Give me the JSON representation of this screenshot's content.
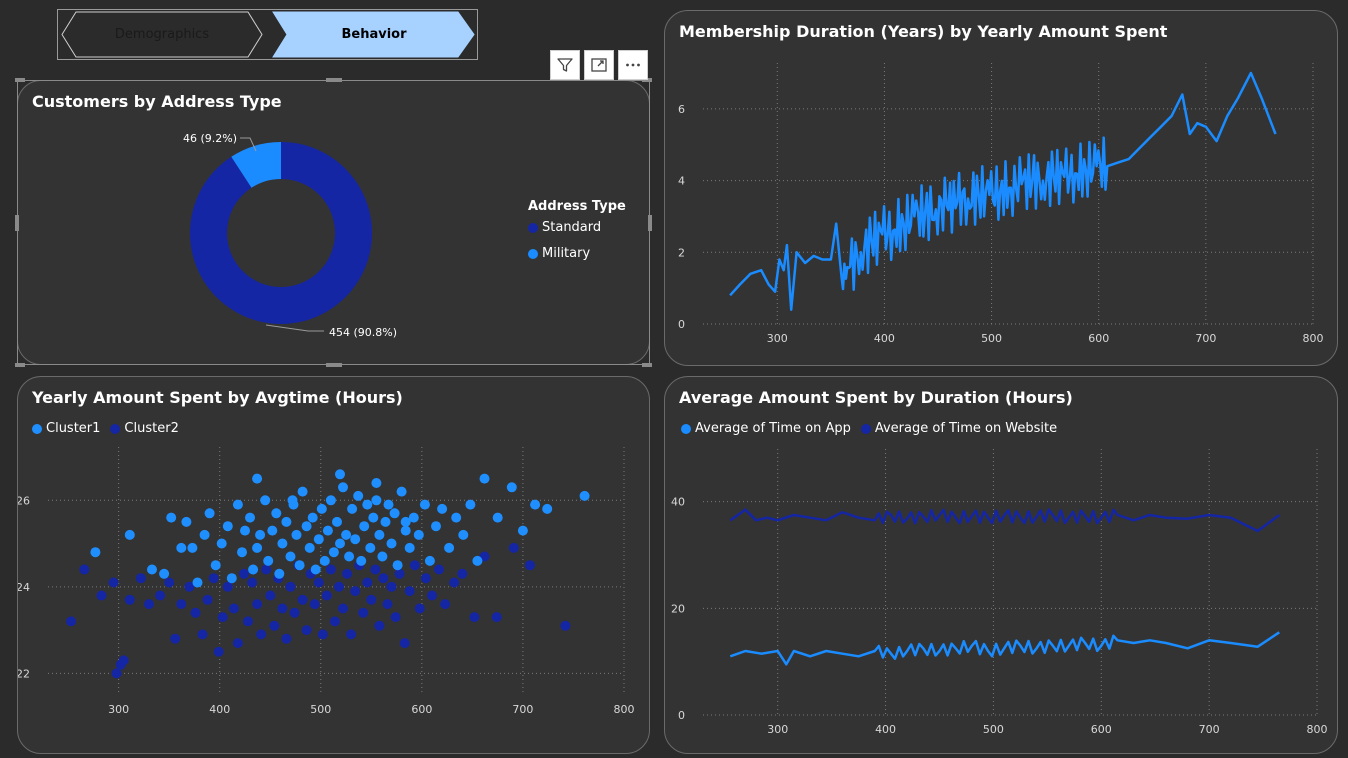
{
  "tabs": [
    {
      "label": "Demographics",
      "active": false
    },
    {
      "label": "Behavior",
      "active": true
    }
  ],
  "visual_header": {
    "icons": [
      "filter-icon",
      "focus-mode-icon",
      "more-options-icon"
    ]
  },
  "colors": {
    "cluster1": "#1f8fff",
    "cluster2": "#1526a5",
    "standard": "#1526a5",
    "military": "#1a8cff",
    "line": "#1a8cff",
    "tab_active": "#a7d2ff"
  },
  "donut": {
    "title": "Customers by Address Type",
    "legend_title": "Address Type",
    "chart_data": {
      "type": "pie",
      "title": "Customers by Address Type",
      "legend_title": "Address Type",
      "slices": [
        {
          "name": "Standard",
          "value": 454,
          "label": "454 (90.8%)"
        },
        {
          "name": "Military",
          "value": 46,
          "label": "46 (9.2%)"
        }
      ],
      "legend_position": "right"
    }
  },
  "membership": {
    "title": "Membership Duration (Years) by Yearly Amount Spent",
    "chart_data": {
      "type": "line",
      "title": "Membership Duration (Years) by Yearly Amount Spent",
      "xlim": [
        240,
        800
      ],
      "ylim": [
        0,
        7
      ],
      "x_ticks": [
        300,
        400,
        500,
        600,
        700,
        800
      ],
      "y_ticks": [
        0,
        2,
        4,
        6
      ],
      "grid": true,
      "series": [
        {
          "values_x": [
            256,
            265,
            275,
            285,
            292,
            298,
            302,
            306,
            309,
            313,
            318,
            326,
            334,
            342,
            350,
            355,
            360,
            368,
            378,
            388,
            398,
            408,
            418,
            428,
            438,
            448,
            458,
            468,
            478,
            488,
            498,
            508,
            518,
            528,
            538,
            548,
            558,
            568,
            578,
            588,
            598,
            608,
            618,
            628,
            638,
            648,
            658,
            668,
            678,
            685,
            692,
            700,
            710,
            720,
            730,
            742,
            752,
            765
          ],
          "values_y": [
            0.8,
            1.1,
            1.4,
            1.5,
            1.1,
            0.9,
            1.8,
            1.5,
            2.2,
            0.4,
            2.0,
            1.7,
            1.9,
            1.8,
            1.8,
            2.8,
            1.3,
            1.6,
            2.0,
            2.3,
            2.5,
            2.6,
            2.8,
            3.0,
            3.1,
            3.2,
            3.3,
            3.4,
            3.5,
            3.6,
            3.6,
            3.7,
            3.8,
            3.9,
            4.0,
            4.0,
            4.1,
            4.1,
            4.2,
            4.3,
            4.4,
            4.4,
            4.5,
            4.6,
            4.9,
            5.2,
            5.5,
            5.8,
            6.4,
            5.3,
            5.6,
            5.5,
            5.1,
            5.8,
            6.3,
            7.0,
            6.3,
            5.3
          ]
        }
      ]
    }
  },
  "scatter": {
    "title": "Yearly Amount Spent by Avgtime (Hours)",
    "legend": [
      "Cluster1",
      "Cluster2"
    ],
    "chart_data": {
      "type": "scatter",
      "title": "Yearly Amount Spent by Avgtime (Hours)",
      "xlim": [
        240,
        800
      ],
      "ylim": [
        21.5,
        27
      ],
      "x_ticks": [
        300,
        400,
        500,
        600,
        700,
        800
      ],
      "y_ticks": [
        22,
        24,
        26
      ],
      "grid": true,
      "legend_position": "top-left",
      "series": [
        {
          "name": "Cluster1",
          "points": [
            [
              277,
              24.8
            ],
            [
              311,
              25.2
            ],
            [
              333,
              24.4
            ],
            [
              345,
              24.3
            ],
            [
              352,
              25.6
            ],
            [
              362,
              24.9
            ],
            [
              367,
              25.5
            ],
            [
              373,
              24.9
            ],
            [
              378,
              24.1
            ],
            [
              385,
              25.2
            ],
            [
              390,
              25.7
            ],
            [
              396,
              24.5
            ],
            [
              402,
              25.0
            ],
            [
              408,
              25.4
            ],
            [
              412,
              24.2
            ],
            [
              418,
              25.9
            ],
            [
              422,
              24.8
            ],
            [
              425,
              25.3
            ],
            [
              430,
              25.6
            ],
            [
              433,
              24.4
            ],
            [
              437,
              24.9
            ],
            [
              440,
              25.2
            ],
            [
              445,
              26.0
            ],
            [
              448,
              24.6
            ],
            [
              452,
              25.3
            ],
            [
              456,
              25.7
            ],
            [
              459,
              24.3
            ],
            [
              462,
              25.0
            ],
            [
              466,
              25.5
            ],
            [
              470,
              24.7
            ],
            [
              473,
              25.9
            ],
            [
              476,
              25.2
            ],
            [
              479,
              24.5
            ],
            [
              482,
              26.2
            ],
            [
              486,
              25.4
            ],
            [
              489,
              24.9
            ],
            [
              492,
              25.6
            ],
            [
              495,
              24.4
            ],
            [
              498,
              25.1
            ],
            [
              501,
              25.8
            ],
            [
              504,
              24.6
            ],
            [
              507,
              25.3
            ],
            [
              510,
              26.0
            ],
            [
              513,
              24.8
            ],
            [
              516,
              25.5
            ],
            [
              519,
              25.0
            ],
            [
              522,
              26.3
            ],
            [
              525,
              25.2
            ],
            [
              528,
              24.7
            ],
            [
              531,
              25.8
            ],
            [
              534,
              25.1
            ],
            [
              537,
              26.1
            ],
            [
              540,
              24.6
            ],
            [
              543,
              25.4
            ],
            [
              546,
              25.9
            ],
            [
              549,
              24.9
            ],
            [
              552,
              25.6
            ],
            [
              555,
              26.4
            ],
            [
              558,
              25.2
            ],
            [
              561,
              24.7
            ],
            [
              564,
              25.5
            ],
            [
              567,
              25.9
            ],
            [
              570,
              25.0
            ],
            [
              573,
              25.7
            ],
            [
              576,
              24.5
            ],
            [
              580,
              26.2
            ],
            [
              584,
              25.3
            ],
            [
              588,
              24.9
            ],
            [
              592,
              25.6
            ],
            [
              597,
              25.2
            ],
            [
              603,
              25.9
            ],
            [
              608,
              24.6
            ],
            [
              614,
              25.4
            ],
            [
              620,
              25.8
            ],
            [
              627,
              24.9
            ],
            [
              634,
              25.6
            ],
            [
              641,
              25.2
            ],
            [
              648,
              25.9
            ],
            [
              655,
              24.6
            ],
            [
              662,
              26.5
            ],
            [
              675,
              25.6
            ],
            [
              689,
              26.3
            ],
            [
              700,
              25.3
            ],
            [
              712,
              25.9
            ],
            [
              724,
              25.8
            ],
            [
              761,
              26.1
            ],
            [
              437,
              26.5
            ],
            [
              472,
              26.0
            ],
            [
              519,
              26.6
            ],
            [
              555,
              26.0
            ],
            [
              584,
              25.5
            ]
          ]
        },
        {
          "name": "Cluster2",
          "points": [
            [
              253,
              23.2
            ],
            [
              266,
              24.4
            ],
            [
              283,
              23.8
            ],
            [
              295,
              24.1
            ],
            [
              298,
              22.0
            ],
            [
              302,
              22.2
            ],
            [
              305,
              22.3
            ],
            [
              311,
              23.7
            ],
            [
              322,
              24.2
            ],
            [
              330,
              23.6
            ],
            [
              341,
              23.8
            ],
            [
              350,
              24.1
            ],
            [
              356,
              22.8
            ],
            [
              362,
              23.6
            ],
            [
              370,
              24.0
            ],
            [
              376,
              23.4
            ],
            [
              383,
              22.9
            ],
            [
              388,
              23.7
            ],
            [
              394,
              24.2
            ],
            [
              399,
              22.5
            ],
            [
              403,
              23.3
            ],
            [
              408,
              24.0
            ],
            [
              414,
              23.5
            ],
            [
              418,
              22.7
            ],
            [
              424,
              24.3
            ],
            [
              428,
              23.2
            ],
            [
              432,
              24.1
            ],
            [
              437,
              23.6
            ],
            [
              441,
              22.9
            ],
            [
              446,
              24.4
            ],
            [
              450,
              23.8
            ],
            [
              454,
              23.1
            ],
            [
              458,
              24.2
            ],
            [
              462,
              23.5
            ],
            [
              466,
              22.8
            ],
            [
              470,
              24.0
            ],
            [
              474,
              23.4
            ],
            [
              478,
              24.5
            ],
            [
              482,
              23.7
            ],
            [
              486,
              23.0
            ],
            [
              490,
              24.3
            ],
            [
              494,
              23.6
            ],
            [
              498,
              24.1
            ],
            [
              502,
              22.9
            ],
            [
              506,
              23.8
            ],
            [
              510,
              24.4
            ],
            [
              514,
              23.2
            ],
            [
              518,
              24.0
            ],
            [
              522,
              23.5
            ],
            [
              526,
              24.3
            ],
            [
              530,
              22.9
            ],
            [
              534,
              23.9
            ],
            [
              538,
              24.5
            ],
            [
              542,
              23.4
            ],
            [
              546,
              24.1
            ],
            [
              550,
              23.7
            ],
            [
              554,
              24.4
            ],
            [
              558,
              23.1
            ],
            [
              562,
              24.2
            ],
            [
              566,
              23.6
            ],
            [
              570,
              24.0
            ],
            [
              574,
              23.3
            ],
            [
              578,
              24.3
            ],
            [
              583,
              22.7
            ],
            [
              588,
              23.9
            ],
            [
              593,
              24.5
            ],
            [
              598,
              23.5
            ],
            [
              604,
              24.2
            ],
            [
              610,
              23.8
            ],
            [
              617,
              24.4
            ],
            [
              623,
              23.6
            ],
            [
              632,
              24.1
            ],
            [
              640,
              24.3
            ],
            [
              652,
              23.3
            ],
            [
              662,
              24.7
            ],
            [
              674,
              23.3
            ],
            [
              691,
              24.9
            ],
            [
              707,
              24.5
            ],
            [
              742,
              23.1
            ]
          ]
        }
      ]
    }
  },
  "avg_spent": {
    "title": "Average Amount Spent by Duration (Hours)",
    "legend": [
      "Average of Time on App",
      "Average of Time on Website"
    ],
    "chart_data": {
      "type": "line",
      "title": "Average Amount Spent by Duration (Hours)",
      "xlim": [
        240,
        800
      ],
      "ylim": [
        0,
        48
      ],
      "x_ticks": [
        300,
        400,
        500,
        600,
        700,
        800
      ],
      "y_ticks": [
        0,
        20,
        40
      ],
      "grid": true,
      "legend_position": "top-left",
      "series": [
        {
          "name": "Average of Time on App",
          "x": [
            256,
            270,
            285,
            300,
            308,
            315,
            330,
            345,
            360,
            375,
            390,
            405,
            420,
            435,
            450,
            465,
            480,
            495,
            510,
            525,
            540,
            555,
            570,
            585,
            600,
            615,
            630,
            645,
            660,
            680,
            700,
            720,
            745,
            765
          ],
          "y": [
            11,
            12,
            11.5,
            12,
            9.5,
            12,
            11,
            12,
            11.5,
            11,
            12,
            11.5,
            12,
            12.5,
            12,
            12.5,
            13,
            12,
            12.5,
            13,
            12.5,
            13,
            13,
            13.5,
            13,
            14,
            13.5,
            14,
            13.5,
            12.5,
            14,
            13.5,
            12.8,
            15.5
          ]
        },
        {
          "name": "Average of Time on Website",
          "x": [
            256,
            270,
            280,
            290,
            300,
            315,
            330,
            345,
            360,
            375,
            390,
            405,
            420,
            435,
            450,
            465,
            480,
            495,
            510,
            525,
            540,
            555,
            570,
            585,
            600,
            615,
            630,
            645,
            660,
            680,
            700,
            720,
            745,
            765
          ],
          "y": [
            36.5,
            38.5,
            36.5,
            37,
            36.5,
            37.5,
            37,
            36.5,
            38,
            37,
            36.5,
            37.5,
            36.8,
            37.2,
            37.5,
            37,
            37.3,
            37,
            37.4,
            37,
            37.2,
            37.5,
            37,
            37.3,
            37,
            37.5,
            36.5,
            37.5,
            37,
            36.8,
            37.5,
            37,
            34.5,
            37.5
          ]
        }
      ]
    }
  }
}
